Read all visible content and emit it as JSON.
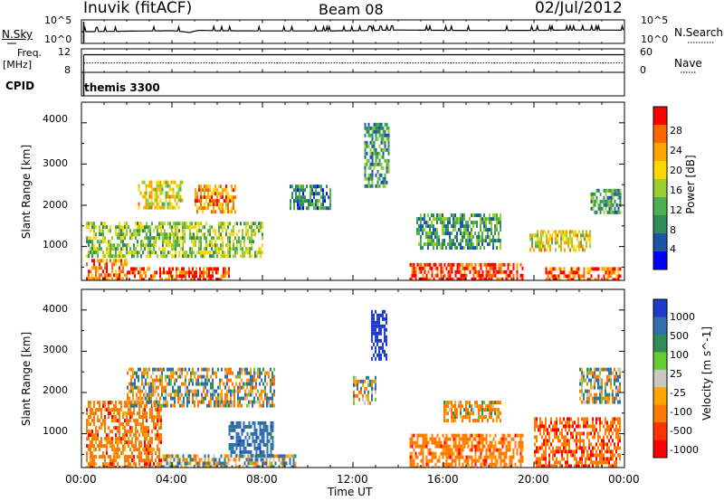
{
  "header": {
    "station": "Inuvik (fitACF)",
    "beam": "Beam 08",
    "date": "02/Jul/2012"
  },
  "side_labels": {
    "nsky": "N.Sky",
    "nsearch": "N.Search",
    "freq": "Freq.",
    "freq_unit": "[MHz]",
    "nave": "Nave",
    "cpid": "CPID",
    "cpid_value": "themis 3300"
  },
  "noise_axis": {
    "top": "10^5",
    "bottom": "10^0"
  },
  "freq_axis": {
    "left_ticks": [
      "12",
      "8"
    ],
    "right_ticks": [
      "60",
      "0"
    ]
  },
  "colors": {
    "power_scale": [
      "#0000ff",
      "#1a55aa",
      "#2e8b57",
      "#4caf50",
      "#9acd32",
      "#ffd700",
      "#ffa500",
      "#ff6600",
      "#ff0000"
    ],
    "velocity_scale": [
      "#1e3cc8",
      "#2f6fb0",
      "#2e8b57",
      "#66cc33",
      "#c8c8c0",
      "#ffa500",
      "#ff7a00",
      "#ff3300",
      "#ff0000"
    ],
    "ground_scatter": "#c8c8c0"
  },
  "chart_data": [
    {
      "type": "line",
      "panel": "noise",
      "ylabel_left": "N.Sky",
      "ylabel_right": "N.Search",
      "yscale": "log",
      "ylim": [
        1,
        100000
      ],
      "x_range_hours": [
        0,
        24
      ],
      "series": [
        {
          "name": "N.Sky",
          "x": [
            0,
            2,
            4,
            4.8,
            5.2,
            6,
            8,
            10,
            12,
            14,
            16,
            18,
            20,
            22,
            24
          ],
          "values": [
            300,
            400,
            500,
            200,
            600,
            500,
            450,
            450,
            500,
            700,
            600,
            550,
            600,
            700,
            650
          ]
        }
      ]
    },
    {
      "type": "line",
      "panel": "frequency",
      "ylabel_left": "Freq. [MHz]",
      "ylabel_right": "Nave",
      "ylim_left": [
        8,
        12
      ],
      "ylim_right": [
        0,
        60
      ],
      "series": [
        {
          "name": "Freq.",
          "x": [
            0,
            24
          ],
          "values": [
            11,
            11
          ]
        },
        {
          "name": "Nave",
          "x": [
            0,
            24
          ],
          "values": [
            24,
            24
          ]
        }
      ]
    },
    {
      "type": "heatmap",
      "panel": "power",
      "xlabel": "",
      "ylabel": "Slant Range [km]",
      "colorbar_label": "Power [dB]",
      "colorbar_ticks": [
        4,
        8,
        12,
        16,
        20,
        24,
        28
      ],
      "zlim": [
        0,
        30
      ],
      "x_ticks": [
        "00:00",
        "04:00",
        "08:00",
        "12:00",
        "16:00",
        "20:00",
        "00:00"
      ],
      "y_ticks": [
        1000,
        2000,
        3000,
        4000
      ],
      "ylim": [
        180,
        4500
      ],
      "regions": [
        {
          "t": [
            0.2,
            2.0
          ],
          "r": [
            200,
            700
          ],
          "value": 24
        },
        {
          "t": [
            2.0,
            6.5
          ],
          "r": [
            200,
            500
          ],
          "value": 26
        },
        {
          "t": [
            2.5,
            4.5
          ],
          "r": [
            1900,
            2600
          ],
          "value": 18
        },
        {
          "t": [
            5.0,
            6.8
          ],
          "r": [
            1800,
            2500
          ],
          "value": 22
        },
        {
          "t": [
            0.2,
            8.0
          ],
          "r": [
            800,
            1600
          ],
          "value": 14
        },
        {
          "t": [
            9.2,
            11.0
          ],
          "r": [
            1900,
            2500
          ],
          "value": 8
        },
        {
          "t": [
            12.5,
            13.6
          ],
          "r": [
            2500,
            4000
          ],
          "value": 10
        },
        {
          "t": [
            14.5,
            19.5
          ],
          "r": [
            200,
            600
          ],
          "value": 27
        },
        {
          "t": [
            14.8,
            18.5
          ],
          "r": [
            1000,
            1800
          ],
          "value": 10
        },
        {
          "t": [
            19.8,
            22.5
          ],
          "r": [
            900,
            1400
          ],
          "value": 18
        },
        {
          "t": [
            20.5,
            23.8
          ],
          "r": [
            200,
            500
          ],
          "value": 25
        },
        {
          "t": [
            22.5,
            23.8
          ],
          "r": [
            1800,
            2400
          ],
          "value": 10
        }
      ]
    },
    {
      "type": "heatmap",
      "panel": "velocity",
      "xlabel": "Time UT",
      "ylabel": "Slant Range [km]",
      "colorbar_label": "Velocity [m s^-1]",
      "colorbar_ticks": [
        1000,
        500,
        100,
        25,
        -25,
        -100,
        -500,
        -1000
      ],
      "x_ticks": [
        "00:00",
        "04:00",
        "08:00",
        "12:00",
        "16:00",
        "20:00",
        "00:00"
      ],
      "y_ticks": [
        1000,
        2000,
        3000,
        4000
      ],
      "ylim": [
        180,
        4500
      ],
      "regions": [
        {
          "t": [
            0.2,
            3.5
          ],
          "r": [
            200,
            1800
          ],
          "value": -300
        },
        {
          "t": [
            2.0,
            8.5
          ],
          "r": [
            1700,
            2600
          ],
          "value": 0
        },
        {
          "t": [
            3.5,
            9.5
          ],
          "r": [
            200,
            500
          ],
          "value": 50
        },
        {
          "t": [
            6.5,
            8.5
          ],
          "r": [
            500,
            1300
          ],
          "value": 300
        },
        {
          "t": [
            12.0,
            13.0
          ],
          "r": [
            1700,
            2400
          ],
          "value": 0
        },
        {
          "t": [
            12.8,
            13.5
          ],
          "r": [
            2800,
            4000
          ],
          "value": 800
        },
        {
          "t": [
            14.5,
            19.5
          ],
          "r": [
            200,
            1000
          ],
          "value": -300
        },
        {
          "t": [
            16.0,
            18.5
          ],
          "r": [
            1300,
            1800
          ],
          "value": -150
        },
        {
          "t": [
            20.0,
            23.8
          ],
          "r": [
            200,
            1400
          ],
          "value": -400
        },
        {
          "t": [
            22.0,
            23.8
          ],
          "r": [
            1800,
            2600
          ],
          "value": 0
        }
      ]
    }
  ]
}
